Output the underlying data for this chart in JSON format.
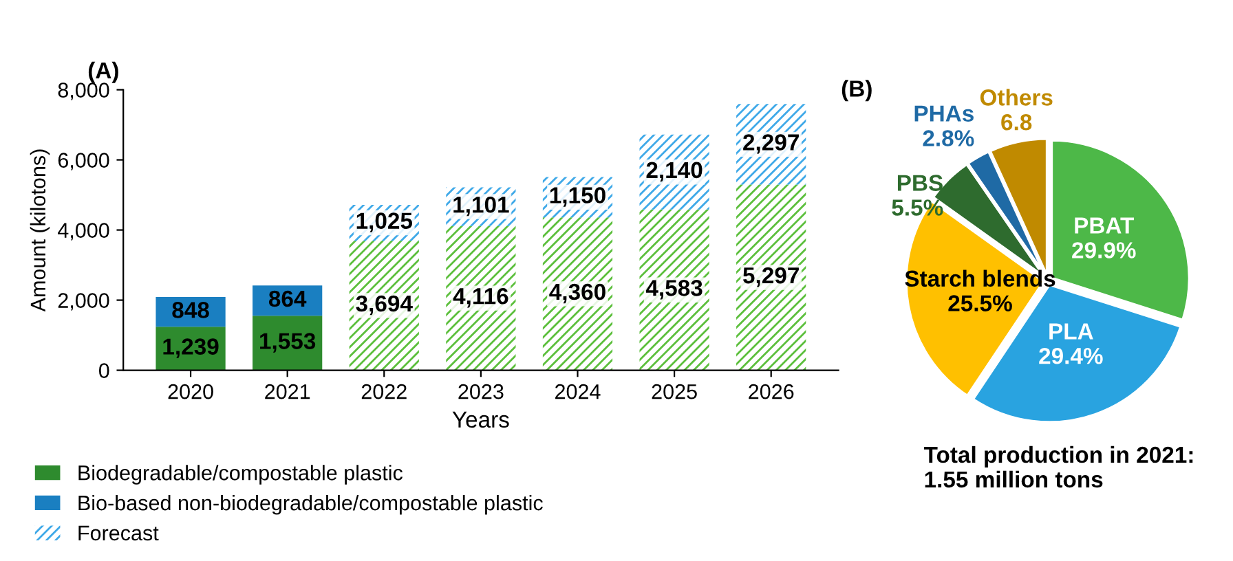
{
  "chart_data": [
    {
      "type": "bar",
      "title": "(A)",
      "xlabel": "Years",
      "ylabel": "Amount (kilotons)",
      "stacked": true,
      "legend": "bottom",
      "grid": false,
      "categories": [
        "2020",
        "2021",
        "2022",
        "2023",
        "2024",
        "2025",
        "2026"
      ],
      "ylim": [
        0,
        8000
      ],
      "yticks": [
        0,
        {
          "value": 2000,
          "label": "2,000"
        },
        {
          "value": 4000,
          "label": "4,000"
        },
        {
          "value": 6000,
          "label": "6,000"
        },
        {
          "value": 8000,
          "label": "8,000"
        }
      ],
      "series": [
        {
          "name": "Biodegradable/compostable plastic",
          "color": "#2e8b2e",
          "values": [
            1239,
            1553,
            null,
            null,
            null,
            null,
            null
          ],
          "value_labels": [
            "1,239",
            "1,553",
            null,
            null,
            null,
            null,
            null
          ]
        },
        {
          "color": "#5cbf3c",
          "values": [
            null,
            null,
            3694,
            4116,
            4360,
            4583,
            5297
          ],
          "value_labels": [
            null,
            null,
            "3,694",
            "4,116",
            "4,360",
            "4,583",
            "5,297"
          ]
        },
        {
          "name": "Bio-based non-biodegradable/compostable plastic",
          "color": "#1a7fc1",
          "values": [
            848,
            864,
            null,
            null,
            null,
            null,
            null
          ],
          "value_labels": [
            "848",
            "864",
            null,
            null,
            null,
            null,
            null
          ]
        },
        {
          "name": "Forecast",
          "color": "#3fa9e8",
          "values": [
            null,
            null,
            1025,
            1101,
            1150,
            2140,
            2297
          ],
          "value_labels": [
            null,
            null,
            "1,025",
            "1,101",
            "1,150",
            "2,140",
            "2,297"
          ]
        }
      ]
    },
    {
      "type": "pie",
      "title": "(B)",
      "categories": [
        "PBAT",
        "PLA",
        "Starch blends",
        "PBS",
        "PHAs",
        "Others"
      ],
      "values": [
        29.9,
        29.4,
        25.5,
        5.5,
        2.8,
        6.8
      ],
      "value_labels": [
        "29.9%",
        "29.4%",
        "25.5%",
        "5.5%",
        "2.8%",
        "6.8"
      ],
      "colors": [
        "#4db848",
        "#29a3e0",
        "#ffc000",
        "#2e6b2e",
        "#1f6aa5",
        "#c08a00"
      ],
      "annotations": [
        "Total production in 2021:\n1.55 million tons"
      ]
    }
  ]
}
